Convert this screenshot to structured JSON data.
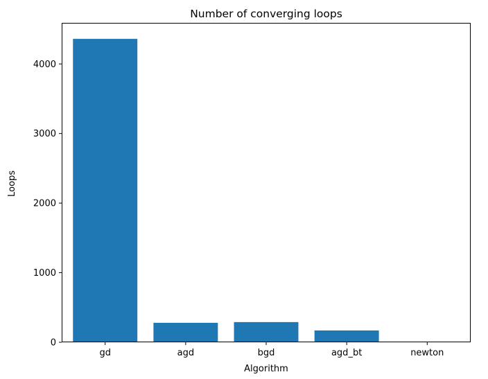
{
  "chart_data": {
    "type": "bar",
    "title": "Number of converging loops",
    "xlabel": "Algorithm",
    "ylabel": "Loops",
    "categories": [
      "gd",
      "agd",
      "bgd",
      "agd_bt",
      "newton"
    ],
    "values": [
      4360,
      280,
      290,
      170,
      8
    ],
    "ylim": [
      0,
      4590
    ],
    "yticks": [
      {
        "value": 0,
        "label": "0"
      },
      {
        "value": 1000,
        "label": "1000"
      },
      {
        "value": 2000,
        "label": "2000"
      },
      {
        "value": 3000,
        "label": "3000"
      },
      {
        "value": 4000,
        "label": "4000"
      }
    ],
    "grid": false,
    "legend": "none",
    "bar_color": "#1f77b4"
  }
}
